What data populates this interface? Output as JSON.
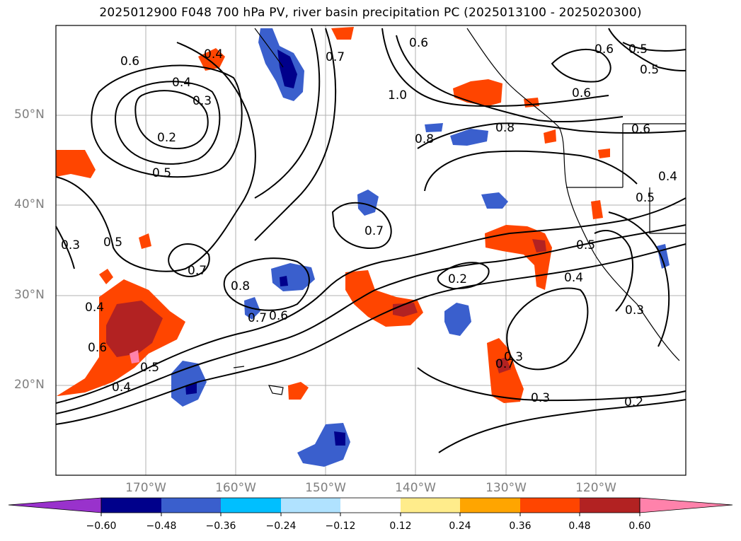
{
  "title": "2025012900 F048 700 hPa PV, river basin precipitation PC (2025013100 - 2025020300)",
  "lat_labels": [
    "50°N",
    "40°N",
    "30°N",
    "20°N"
  ],
  "lon_labels": [
    "170°W",
    "160°W",
    "150°W",
    "140°W",
    "130°W",
    "120°W"
  ],
  "colorbar": {
    "ticks": [
      "−0.60",
      "−0.48",
      "−0.36",
      "−0.24",
      "−0.12",
      "0.12",
      "0.24",
      "0.36",
      "0.48",
      "0.60"
    ],
    "colors": [
      "#9932cc",
      "#00008b",
      "#3a5fcd",
      "#00bfff",
      "#b0e2ff",
      "#ffffff",
      "#ffec8b",
      "#ffa500",
      "#ff4500",
      "#b22222",
      "#ff82ab"
    ]
  },
  "contour_labels": [
    "0.6",
    "0.4",
    "0.4",
    "0.3",
    "0.2",
    "0.5",
    "0.3",
    "0.5",
    "0.4",
    "0.6",
    "0.5",
    "0.4",
    "0.7",
    "0.8",
    "0.7",
    "0.6",
    "0.7",
    "1.0",
    "0.6",
    "0.8",
    "0.8",
    "0.7",
    "0.6",
    "0.5",
    "0.5",
    "0.6",
    "0.6",
    "0.5",
    "0.4",
    "0.2",
    "0.7",
    "0.3",
    "0.3",
    "0.4",
    "0.5",
    "0.3",
    "0.2"
  ]
}
